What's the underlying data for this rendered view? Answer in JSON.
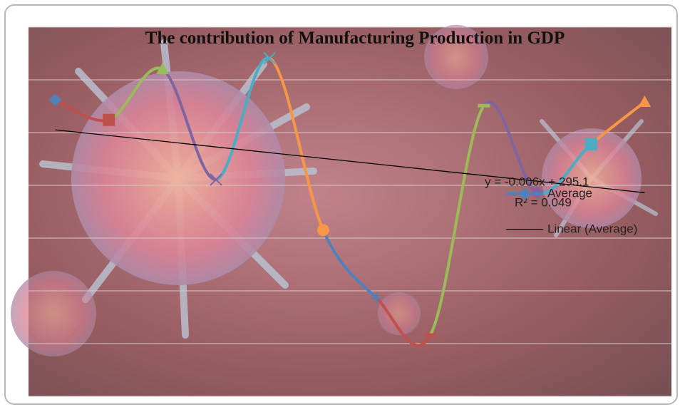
{
  "chart_data": {
    "type": "line",
    "title": "The contribution of Manufacturing Production in GDP",
    "categories": [
      null,
      null,
      null,
      null,
      null,
      null,
      null,
      null,
      null,
      null,
      null,
      null
    ],
    "series": [
      {
        "name": "Average",
        "color": "#4f81bd",
        "values": [
          5.62,
          5.24,
          6.2,
          4.11,
          6.41,
          3.15,
          1.86,
          1.16,
          5.51,
          3.86,
          4.78,
          5.58
        ],
        "point_colors": [
          "#4f81bd",
          "#c0504d",
          "#9bbb59",
          "#8064a2",
          "#4bacc6",
          "#f79646",
          "#4f81bd",
          "#c0504d",
          "#9bbb59",
          "#8064a2",
          "#4bacc6",
          "#f79646"
        ],
        "markers": [
          "diamond",
          "square",
          "triangle",
          "x",
          "x",
          "circle",
          "plus",
          "dash",
          "dash",
          "diamond",
          "square",
          "triangle"
        ]
      }
    ],
    "trendline": {
      "name": "Linear (Average)",
      "color": "#000000",
      "equation": "y = -0.006x + 295.1",
      "r_squared": "R² = 0.049"
    },
    "ylim": [
      0,
      7
    ],
    "yticks": [
      0,
      1,
      2,
      3,
      4,
      5,
      6,
      7
    ],
    "grid": true,
    "smooth": true
  }
}
